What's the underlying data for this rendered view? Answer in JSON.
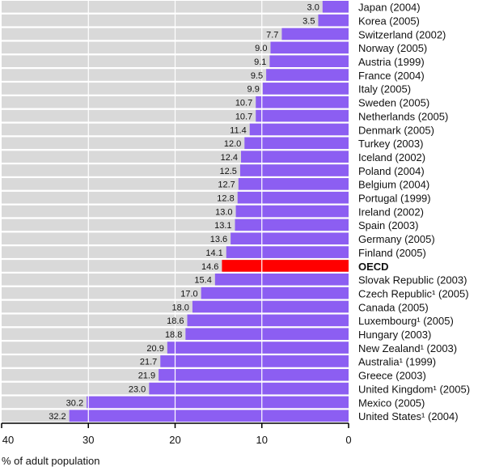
{
  "chart_data": {
    "type": "bar",
    "orientation": "horizontal",
    "xlabel": "% of adult population",
    "xlim": [
      0,
      40
    ],
    "x_reversed": true,
    "xticks": [
      40,
      30,
      20,
      10,
      0
    ],
    "grid": true,
    "categories": [
      {
        "name": "Japan (2004)",
        "value": 3.0,
        "label": "3.0"
      },
      {
        "name": "Korea (2005)",
        "value": 3.5,
        "label": "3.5"
      },
      {
        "name": "Switzerland (2002)",
        "value": 7.7,
        "label": "7.7"
      },
      {
        "name": "Norway (2005)",
        "value": 9.0,
        "label": "9.0"
      },
      {
        "name": "Austria (1999)",
        "value": 9.1,
        "label": "9.1"
      },
      {
        "name": "France (2004)",
        "value": 9.5,
        "label": "9.5"
      },
      {
        "name": "Italy (2005)",
        "value": 9.9,
        "label": "9.9"
      },
      {
        "name": "Sweden (2005)",
        "value": 10.7,
        "label": "10.7"
      },
      {
        "name": "Netherlands (2005)",
        "value": 10.7,
        "label": "10.7"
      },
      {
        "name": "Denmark (2005)",
        "value": 11.4,
        "label": "11.4"
      },
      {
        "name": "Turkey (2003)",
        "value": 12.0,
        "label": "12.0"
      },
      {
        "name": "Iceland (2002)",
        "value": 12.4,
        "label": "12.4"
      },
      {
        "name": "Poland (2004)",
        "value": 12.5,
        "label": "12.5"
      },
      {
        "name": "Belgium (2004)",
        "value": 12.7,
        "label": "12.7"
      },
      {
        "name": "Portugal (1999)",
        "value": 12.8,
        "label": "12.8"
      },
      {
        "name": "Ireland (2002)",
        "value": 13.0,
        "label": "13.0"
      },
      {
        "name": "Spain (2003)",
        "value": 13.1,
        "label": "13.1"
      },
      {
        "name": "Germany (2005)",
        "value": 13.6,
        "label": "13.6"
      },
      {
        "name": "Finland (2005)",
        "value": 14.1,
        "label": "14.1"
      },
      {
        "name": "OECD",
        "value": 14.6,
        "label": "14.6",
        "highlight": true
      },
      {
        "name": "Slovak Republic (2003)",
        "value": 15.4,
        "label": "15.4"
      },
      {
        "name": "Czech Republic¹ (2005)",
        "value": 17.0,
        "label": "17.0"
      },
      {
        "name": "Canada (2005)",
        "value": 18.0,
        "label": "18.0"
      },
      {
        "name": "Luxembourg¹ (2005)",
        "value": 18.6,
        "label": "18.6"
      },
      {
        "name": "Hungary (2003)",
        "value": 18.8,
        "label": "18.8"
      },
      {
        "name": "New Zealand¹ (2003)",
        "value": 20.9,
        "label": "20.9"
      },
      {
        "name": "Australia¹ (1999)",
        "value": 21.7,
        "label": "21.7"
      },
      {
        "name": "Greece (2003)",
        "value": 21.9,
        "label": "21.9"
      },
      {
        "name": "United Kingdom¹ (2005)",
        "value": 23.0,
        "label": "23.0"
      },
      {
        "name": "Mexico (2005)",
        "value": 30.2,
        "label": "30.2"
      },
      {
        "name": "United States¹ (2004)",
        "value": 32.2,
        "label": "32.2"
      }
    ],
    "colors": {
      "bar": "#8c5ef2",
      "highlight": "#ff0000",
      "track": "#d9d9d9",
      "grid": "#ffffff",
      "axis": "#000000"
    }
  }
}
